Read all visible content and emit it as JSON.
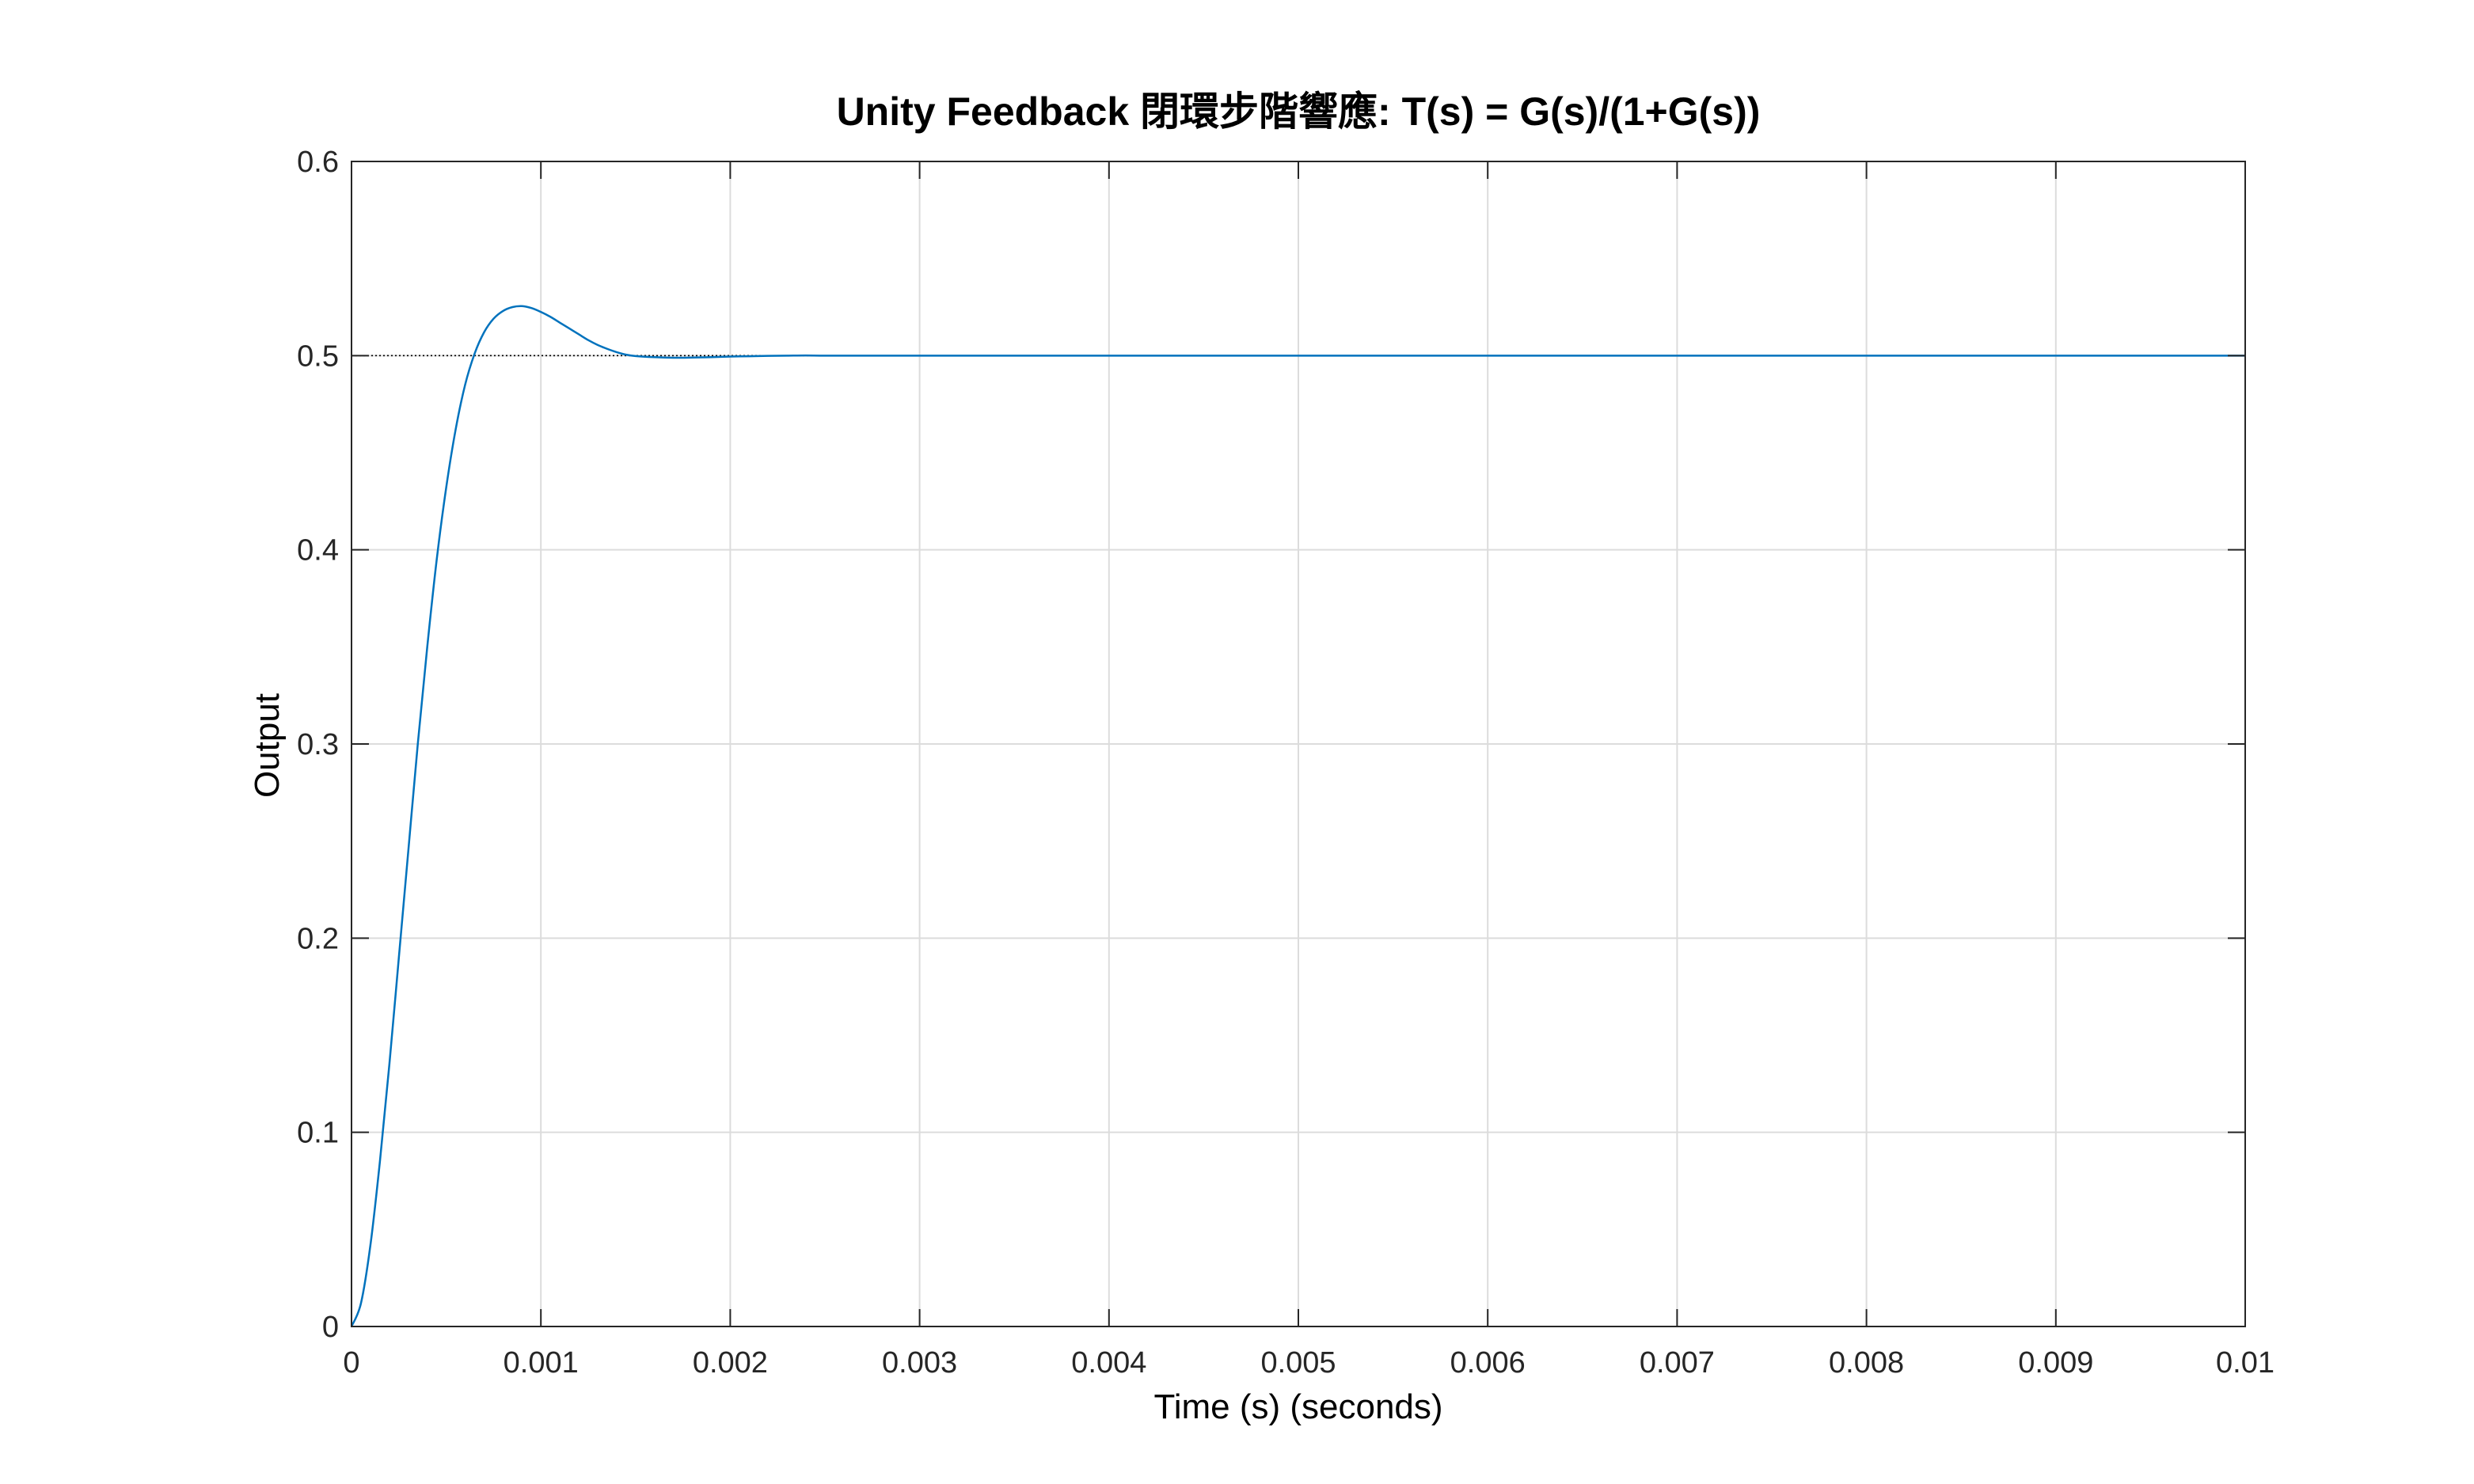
{
  "chart_data": {
    "type": "line",
    "title": "Unity Feedback 閉環步階響應: T(s) = G(s)/(1+G(s))",
    "xlabel": "Time (s) (seconds)",
    "ylabel": "Output",
    "xlim": [
      0,
      0.01
    ],
    "ylim": [
      0,
      0.6
    ],
    "x_ticks": [
      "0",
      "0.001",
      "0.002",
      "0.003",
      "0.004",
      "0.005",
      "0.006",
      "0.007",
      "0.008",
      "0.009",
      "0.01"
    ],
    "y_ticks": [
      "0",
      "0.1",
      "0.2",
      "0.3",
      "0.4",
      "0.5",
      "0.6"
    ],
    "grid": true,
    "legend": "none",
    "steady_state": 0.5,
    "series": [
      {
        "color": "#0072BD",
        "x": [
          0,
          5e-05,
          0.0001,
          0.00015,
          0.0002,
          0.00025,
          0.0003,
          0.00035,
          0.0004,
          0.00045,
          0.0005,
          0.00055,
          0.0006,
          0.00065,
          0.0007,
          0.00075,
          0.0008,
          0.00085,
          0.0009,
          0.00095,
          0.001,
          0.00105,
          0.0011,
          0.00115,
          0.0012,
          0.00125,
          0.0013,
          0.00135,
          0.0014,
          0.00145,
          0.0015,
          0.0016,
          0.0017,
          0.0018,
          0.0019,
          0.002,
          0.0021,
          0.0022,
          0.0023,
          0.0024,
          0.0025,
          0.0027,
          0.003,
          0.0035,
          0.004,
          0.005,
          0.006,
          0.007,
          0.008,
          0.009,
          0.01
        ],
        "y": [
          0,
          0.012,
          0.042,
          0.085,
          0.135,
          0.19,
          0.245,
          0.3,
          0.35,
          0.395,
          0.432,
          0.462,
          0.485,
          0.501,
          0.512,
          0.519,
          0.523,
          0.525,
          0.5255,
          0.5245,
          0.5225,
          0.52,
          0.517,
          0.514,
          0.511,
          0.508,
          0.5055,
          0.5035,
          0.5018,
          0.5005,
          0.4998,
          0.4992,
          0.4989,
          0.499,
          0.4992,
          0.4995,
          0.4997,
          0.4999,
          0.5,
          0.5001,
          0.5,
          0.5,
          0.5,
          0.5,
          0.5,
          0.5,
          0.5,
          0.5,
          0.5,
          0.5,
          0.5
        ]
      }
    ]
  },
  "colors": {
    "line": "#0072BD",
    "steady": "#000000",
    "grid": "#dcdcdc",
    "axes": "#262626"
  }
}
